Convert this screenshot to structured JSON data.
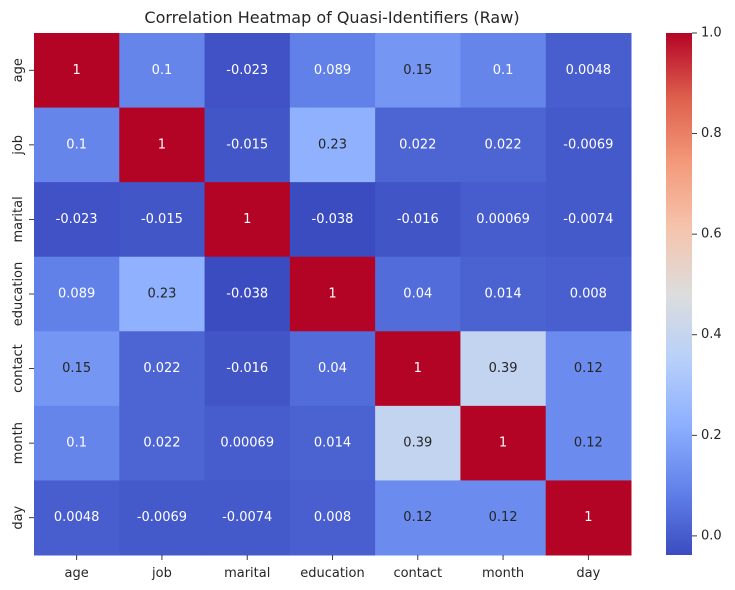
{
  "chart_data": {
    "type": "heatmap",
    "title": "Correlation Heatmap of Quasi-Identifiers (Raw)",
    "xlabel": "",
    "ylabel": "",
    "x_categories": [
      "age",
      "job",
      "marital",
      "education",
      "contact",
      "month",
      "day"
    ],
    "y_categories": [
      "age",
      "job",
      "marital",
      "education",
      "contact",
      "month",
      "day"
    ],
    "values": [
      [
        1,
        0.1,
        -0.023,
        0.089,
        0.15,
        0.1,
        0.0048
      ],
      [
        0.1,
        1,
        -0.015,
        0.23,
        0.022,
        0.022,
        -0.0069
      ],
      [
        -0.023,
        -0.015,
        1,
        -0.038,
        -0.016,
        0.00069,
        -0.0074
      ],
      [
        0.089,
        0.23,
        -0.038,
        1,
        0.04,
        0.014,
        0.008
      ],
      [
        0.15,
        0.022,
        -0.016,
        0.04,
        1,
        0.39,
        0.12
      ],
      [
        0.1,
        0.022,
        0.00069,
        0.014,
        0.39,
        1,
        0.12
      ],
      [
        0.0048,
        -0.0069,
        -0.0074,
        0.008,
        0.12,
        0.12,
        1
      ]
    ],
    "cell_labels": [
      [
        "1",
        "0.1",
        "-0.023",
        "0.089",
        "0.15",
        "0.1",
        "0.0048"
      ],
      [
        "0.1",
        "1",
        "-0.015",
        "0.23",
        "0.022",
        "0.022",
        "-0.0069"
      ],
      [
        "-0.023",
        "-0.015",
        "1",
        "-0.038",
        "-0.016",
        "0.00069",
        "-0.0074"
      ],
      [
        "0.089",
        "0.23",
        "-0.038",
        "1",
        "0.04",
        "0.014",
        "0.008"
      ],
      [
        "0.15",
        "0.022",
        "-0.016",
        "0.04",
        "1",
        "0.39",
        "0.12"
      ],
      [
        "0.1",
        "0.022",
        "0.00069",
        "0.014",
        "0.39",
        "1",
        "0.12"
      ],
      [
        "0.0048",
        "-0.0069",
        "-0.0074",
        "0.008",
        "0.12",
        "0.12",
        "1"
      ]
    ],
    "colormap": "coolwarm",
    "colorbar": {
      "range": [
        -0.038,
        1.0
      ],
      "ticks": [
        0.0,
        0.2,
        0.4,
        0.6,
        0.8,
        1.0
      ],
      "tick_labels": [
        "0.0",
        "0.2",
        "0.4",
        "0.6",
        "0.8",
        "1.0"
      ]
    },
    "grid": false,
    "legend": "colorbar-right"
  }
}
